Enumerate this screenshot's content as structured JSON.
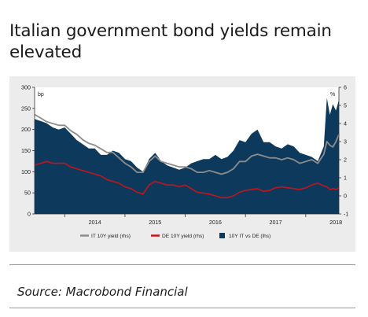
{
  "title": "Italian government bond yields remain elevated",
  "source": "Source: Macrobond Financial",
  "chart_data": {
    "type": "area",
    "title": "Italian government bond yields remain elevated",
    "x_labels": [
      "2014",
      "2015",
      "2016",
      "2017",
      "2018"
    ],
    "x_range": [
      2013.5,
      2018.55
    ],
    "left_axis": {
      "unit": "bp",
      "ylim": [
        0,
        300
      ],
      "ticks": [
        0,
        50,
        100,
        150,
        200,
        250,
        300
      ]
    },
    "right_axis": {
      "unit": "%",
      "ylim": [
        -1,
        6
      ],
      "ticks": [
        -1,
        0,
        1,
        2,
        3,
        4,
        5,
        6
      ]
    },
    "legend_position": "bottom",
    "series": [
      {
        "name": "IT 10Y yield (rhs)",
        "axis": "right",
        "kind": "line",
        "color": "#8c8c8c",
        "x": [
          2013.5,
          2013.6,
          2013.7,
          2013.8,
          2013.9,
          2014.0,
          2014.1,
          2014.2,
          2014.3,
          2014.4,
          2014.5,
          2014.6,
          2014.7,
          2014.8,
          2014.9,
          2015.0,
          2015.1,
          2015.2,
          2015.3,
          2015.4,
          2015.5,
          2015.6,
          2015.7,
          2015.8,
          2015.9,
          2016.0,
          2016.1,
          2016.2,
          2016.3,
          2016.4,
          2016.5,
          2016.6,
          2016.7,
          2016.8,
          2016.9,
          2017.0,
          2017.1,
          2017.2,
          2017.3,
          2017.4,
          2017.5,
          2017.6,
          2017.7,
          2017.8,
          2017.9,
          2018.0,
          2018.1,
          2018.2,
          2018.3,
          2018.35,
          2018.4,
          2018.45,
          2018.5,
          2018.55
        ],
        "values": [
          4.5,
          4.3,
          4.1,
          4.0,
          3.9,
          3.9,
          3.6,
          3.4,
          3.1,
          2.9,
          2.8,
          2.6,
          2.4,
          2.4,
          2.1,
          1.8,
          1.6,
          1.3,
          1.3,
          1.9,
          2.2,
          1.9,
          1.8,
          1.7,
          1.6,
          1.6,
          1.5,
          1.3,
          1.3,
          1.4,
          1.3,
          1.2,
          1.3,
          1.5,
          1.9,
          1.9,
          2.2,
          2.3,
          2.2,
          2.1,
          2.1,
          2.0,
          2.1,
          2.0,
          1.8,
          1.9,
          2.0,
          1.8,
          2.3,
          3.0,
          2.8,
          2.7,
          3.0,
          3.4
        ]
      },
      {
        "name": "DE 10Y yield (rhs)",
        "axis": "right",
        "kind": "line",
        "color": "#c0161c",
        "x": [
          2013.5,
          2013.6,
          2013.7,
          2013.8,
          2013.9,
          2014.0,
          2014.1,
          2014.2,
          2014.3,
          2014.4,
          2014.5,
          2014.6,
          2014.7,
          2014.8,
          2014.9,
          2015.0,
          2015.1,
          2015.2,
          2015.3,
          2015.4,
          2015.5,
          2015.6,
          2015.7,
          2015.8,
          2015.9,
          2016.0,
          2016.1,
          2016.2,
          2016.3,
          2016.4,
          2016.5,
          2016.6,
          2016.7,
          2016.8,
          2016.9,
          2017.0,
          2017.1,
          2017.2,
          2017.3,
          2017.4,
          2017.5,
          2017.6,
          2017.7,
          2017.8,
          2017.9,
          2018.0,
          2018.1,
          2018.2,
          2018.3,
          2018.35,
          2018.4,
          2018.45,
          2018.5,
          2018.55
        ],
        "values": [
          1.7,
          1.8,
          1.9,
          1.8,
          1.8,
          1.8,
          1.6,
          1.5,
          1.4,
          1.3,
          1.2,
          1.1,
          0.9,
          0.8,
          0.7,
          0.5,
          0.4,
          0.2,
          0.1,
          0.6,
          0.8,
          0.7,
          0.6,
          0.6,
          0.5,
          0.6,
          0.4,
          0.2,
          0.15,
          0.1,
          0.0,
          -0.1,
          -0.1,
          0.0,
          0.2,
          0.3,
          0.35,
          0.4,
          0.25,
          0.3,
          0.45,
          0.5,
          0.45,
          0.4,
          0.35,
          0.45,
          0.6,
          0.7,
          0.55,
          0.5,
          0.35,
          0.4,
          0.35,
          0.45
        ]
      },
      {
        "name": "10Y IT vs DE (lhs)",
        "axis": "left",
        "kind": "area",
        "color": "#0d3a5c",
        "x": [
          2013.5,
          2013.6,
          2013.7,
          2013.8,
          2013.9,
          2014.0,
          2014.1,
          2014.2,
          2014.3,
          2014.4,
          2014.5,
          2014.6,
          2014.7,
          2014.8,
          2014.9,
          2015.0,
          2015.1,
          2015.2,
          2015.3,
          2015.4,
          2015.5,
          2015.6,
          2015.7,
          2015.8,
          2015.9,
          2016.0,
          2016.1,
          2016.2,
          2016.3,
          2016.4,
          2016.5,
          2016.6,
          2016.7,
          2016.8,
          2016.9,
          2017.0,
          2017.1,
          2017.2,
          2017.3,
          2017.4,
          2017.5,
          2017.6,
          2017.7,
          2017.8,
          2017.9,
          2018.0,
          2018.1,
          2018.2,
          2018.3,
          2018.35,
          2018.4,
          2018.45,
          2018.5,
          2018.55
        ],
        "values": [
          225,
          220,
          215,
          205,
          200,
          205,
          190,
          175,
          165,
          155,
          155,
          140,
          140,
          150,
          145,
          130,
          125,
          110,
          100,
          130,
          145,
          125,
          115,
          110,
          105,
          110,
          120,
          125,
          130,
          130,
          140,
          130,
          135,
          150,
          175,
          170,
          190,
          200,
          170,
          170,
          160,
          155,
          165,
          160,
          145,
          140,
          135,
          125,
          160,
          275,
          235,
          260,
          245,
          270
        ]
      }
    ]
  }
}
